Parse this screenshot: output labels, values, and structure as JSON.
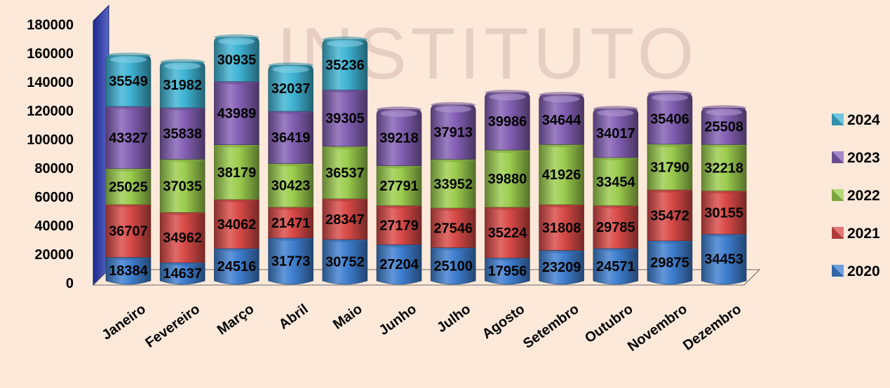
{
  "chart_data": {
    "type": "bar",
    "stacked": true,
    "three_d": true,
    "orientation": "vertical",
    "categories": [
      "Janeiro",
      "Fevereiro",
      "Março",
      "Abril",
      "Maio",
      "Junho",
      "Julho",
      "Agosto",
      "Setembro",
      "Outubro",
      "Novembro",
      "Dezembro"
    ],
    "series": [
      {
        "name": "2020",
        "color": "#3f7fd0",
        "values": [
          18384,
          14637,
          24516,
          31773,
          30752,
          27204,
          25100,
          17956,
          23209,
          24571,
          29875,
          34453
        ]
      },
      {
        "name": "2021",
        "color": "#d94a47",
        "values": [
          36707,
          34962,
          34062,
          21471,
          28347,
          27179,
          27546,
          35224,
          31808,
          29785,
          35472,
          30155
        ]
      },
      {
        "name": "2022",
        "color": "#9ccd4e",
        "values": [
          25025,
          37035,
          38179,
          30423,
          36537,
          27791,
          33952,
          39880,
          41926,
          33454,
          31790,
          32218
        ]
      },
      {
        "name": "2023",
        "color": "#8460b4",
        "values": [
          43327,
          35838,
          43989,
          36419,
          39305,
          39218,
          37913,
          39986,
          34644,
          34017,
          35406,
          25508
        ]
      },
      {
        "name": "2024",
        "color": "#3fb4d4",
        "values": [
          35549,
          31982,
          30935,
          32037,
          35236,
          null,
          null,
          null,
          null,
          null,
          null,
          null
        ]
      }
    ],
    "yticks": [
      "0",
      "20000",
      "40000",
      "60000",
      "80000",
      "100000",
      "120000",
      "140000",
      "160000",
      "180000"
    ],
    "ylim": [
      0,
      180000
    ],
    "grid": false,
    "legend_position": "right",
    "legend_order": [
      "2024",
      "2023",
      "2022",
      "2021",
      "2020"
    ],
    "watermark": "INSTITUTO",
    "title": "",
    "xlabel": "",
    "ylabel": ""
  }
}
